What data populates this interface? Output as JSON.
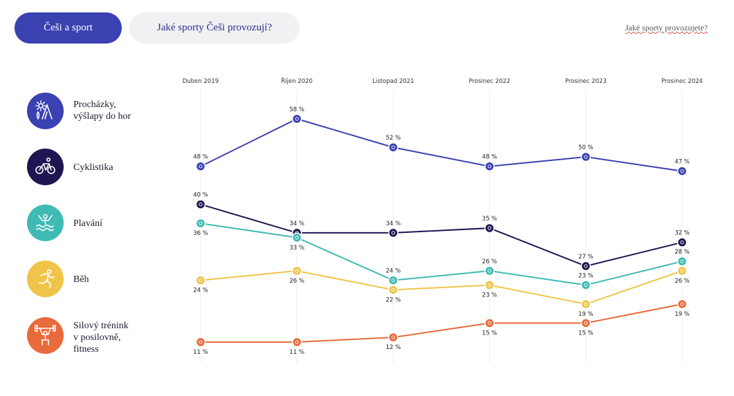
{
  "tabs": [
    {
      "label": "Češi a sport",
      "active": true
    },
    {
      "label": "Jaké sporty Češi provozují?",
      "active": false
    }
  ],
  "top_link": "Jaké sporty provozujete?",
  "rows": [
    {
      "label_lines": [
        "Procházky,",
        "výšlapy do hor"
      ],
      "icon": "hiking-mountain-icon",
      "color": "#3a41b0"
    },
    {
      "label_lines": [
        "Cyklistika"
      ],
      "icon": "bicycle-icon",
      "color": "#1e1650"
    },
    {
      "label_lines": [
        "Plavání"
      ],
      "icon": "swimmer-icon",
      "color": "#3fbab4"
    },
    {
      "label_lines": [
        "Běh"
      ],
      "icon": "runner-icon",
      "color": "#f0c449"
    },
    {
      "label_lines": [
        "Silový trénink",
        "v posilovně,",
        "fitness"
      ],
      "icon": "weightlifting-icon",
      "color": "#e96a3a"
    }
  ],
  "chart_data": {
    "type": "line",
    "categories": [
      "Duben 2019",
      "Říjen 2020",
      "Listopad 2021",
      "Prosinec 2022",
      "Prosinec 2023",
      "Prosinec 2024"
    ],
    "unit": "%",
    "series": [
      {
        "name": "Procházky, výšlapy do hor",
        "color": "#3a41b0",
        "values": [
          48,
          58,
          52,
          48,
          50,
          47
        ],
        "label_pos": [
          "above",
          "above",
          "above",
          "above",
          "above",
          "above"
        ]
      },
      {
        "name": "Cyklistika",
        "color": "#1e1650",
        "values": [
          40,
          34,
          34,
          35,
          27,
          32
        ],
        "label_pos": [
          "above",
          "above",
          "above",
          "above",
          "above",
          "above"
        ]
      },
      {
        "name": "Plavání",
        "color": "#3fbab4",
        "values": [
          36,
          33,
          24,
          26,
          23,
          28
        ],
        "label_pos": [
          "below",
          "below",
          "above",
          "above",
          "above",
          "above"
        ]
      },
      {
        "name": "Běh",
        "color": "#f0c449",
        "values": [
          24,
          26,
          22,
          23,
          19,
          26
        ],
        "label_pos": [
          "below",
          "below",
          "below",
          "below",
          "below",
          "below"
        ]
      },
      {
        "name": "Silový trénink v posilovně, fitness",
        "color": "#e96a3a",
        "values": [
          11,
          11,
          12,
          15,
          15,
          19
        ],
        "label_pos": [
          "below",
          "below",
          "below",
          "below",
          "below",
          "below"
        ]
      }
    ],
    "ylim": [
      11,
      58
    ],
    "grid": "vertical"
  }
}
